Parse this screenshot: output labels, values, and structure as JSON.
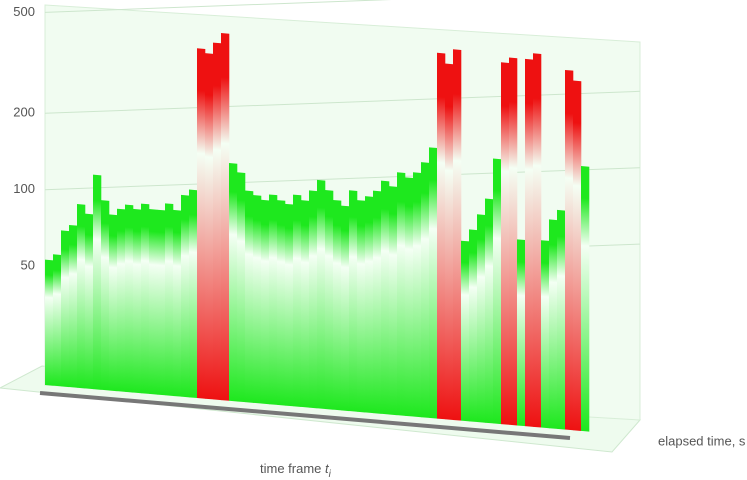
{
  "chart_data": {
    "type": "bar",
    "x_label": "time frame ",
    "x_label_var": "t",
    "x_label_sub": "i",
    "y_label": "elapsed time, s",
    "log_scale": true,
    "grid": true,
    "ylim": [
      17,
      520
    ],
    "yticks": [
      50,
      100,
      200,
      500
    ],
    "values": [
      53,
      56,
      70,
      74,
      90,
      83,
      119,
      95,
      84,
      89,
      93,
      90,
      95,
      91,
      91,
      97,
      92,
      106,
      112,
      406,
      391,
      433,
      475,
      147,
      136,
      116,
      112,
      108,
      114,
      109,
      106,
      116,
      111,
      122,
      135,
      124,
      114,
      109,
      126,
      116,
      121,
      128,
      141,
      135,
      154,
      148,
      156,
      172,
      198,
      470,
      429,
      491,
      87,
      97,
      112,
      130,
      188,
      453,
      476,
      92,
      476,
      504,
      93,
      113,
      124,
      444,
      406,
      188
    ],
    "colors": [
      "#1ee81e",
      "#1ee81e",
      "#1ee81e",
      "#1ee81e",
      "#1ee81e",
      "#1ee81e",
      "#1ee81e",
      "#1ee81e",
      "#1ee81e",
      "#1ee81e",
      "#1ee81e",
      "#1ee81e",
      "#1ee81e",
      "#1ee81e",
      "#1ee81e",
      "#1ee81e",
      "#1ee81e",
      "#1ee81e",
      "#1ee81e",
      "#ee1111",
      "#ee1111",
      "#ee1111",
      "#ee1111",
      "#1ee81e",
      "#1ee81e",
      "#1ee81e",
      "#1ee81e",
      "#1ee81e",
      "#1ee81e",
      "#1ee81e",
      "#1ee81e",
      "#1ee81e",
      "#1ee81e",
      "#1ee81e",
      "#1ee81e",
      "#1ee81e",
      "#1ee81e",
      "#1ee81e",
      "#1ee81e",
      "#1ee81e",
      "#1ee81e",
      "#1ee81e",
      "#1ee81e",
      "#1ee81e",
      "#1ee81e",
      "#1ee81e",
      "#1ee81e",
      "#1ee81e",
      "#1ee81e",
      "#ee1111",
      "#ee1111",
      "#ee1111",
      "#1ee81e",
      "#1ee81e",
      "#1ee81e",
      "#1ee81e",
      "#1ee81e",
      "#ee1111",
      "#ee1111",
      "#1ee81e",
      "#ee1111",
      "#ee1111",
      "#1ee81e",
      "#1ee81e",
      "#1ee81e",
      "#ee1111",
      "#ee1111",
      "#1ee81e"
    ]
  }
}
